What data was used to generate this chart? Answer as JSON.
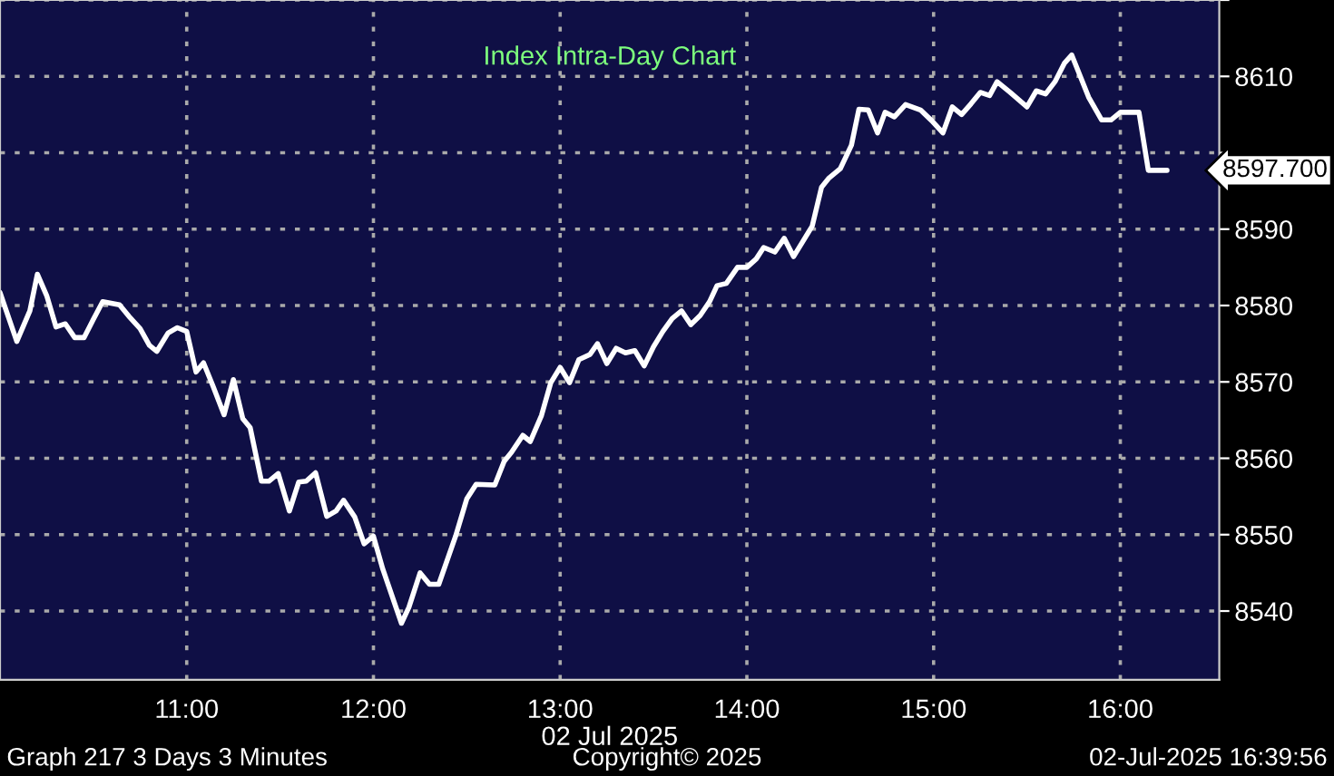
{
  "chart_data": {
    "type": "line",
    "title": "Index Intra-Day Chart",
    "xlabel": "02 Jul 2025",
    "x": [
      10.0,
      10.09,
      10.16,
      10.2,
      10.25,
      10.3,
      10.35,
      10.4,
      10.45,
      10.5,
      10.55,
      10.64,
      10.69,
      10.75,
      10.8,
      10.84,
      10.9,
      10.95,
      11.0,
      11.05,
      11.09,
      11.14,
      11.2,
      11.25,
      11.3,
      11.34,
      11.4,
      11.44,
      11.49,
      11.55,
      11.6,
      11.64,
      11.69,
      11.75,
      11.8,
      11.84,
      11.9,
      11.95,
      12.0,
      12.05,
      12.15,
      12.19,
      12.25,
      12.3,
      12.35,
      12.44,
      12.5,
      12.55,
      12.65,
      12.7,
      12.74,
      12.8,
      12.84,
      12.9,
      12.95,
      13.0,
      13.05,
      13.1,
      13.16,
      13.2,
      13.25,
      13.3,
      13.35,
      13.4,
      13.45,
      13.5,
      13.55,
      13.6,
      13.65,
      13.7,
      13.75,
      13.8,
      13.84,
      13.89,
      13.95,
      14.0,
      14.05,
      14.09,
      14.15,
      14.2,
      14.25,
      14.35,
      14.4,
      14.44,
      14.5,
      14.56,
      14.6,
      14.65,
      14.7,
      14.74,
      14.79,
      14.85,
      14.93,
      14.99,
      15.05,
      15.1,
      15.15,
      15.2,
      15.25,
      15.3,
      15.34,
      15.41,
      15.5,
      15.55,
      15.6,
      15.65,
      15.7,
      15.74,
      15.83,
      15.9,
      15.95,
      16.0,
      16.1,
      16.15,
      16.25
    ],
    "series": [
      {
        "color": "#ffffff",
        "values": [
          8581.7,
          8575.3,
          8579.3,
          8584.1,
          8581.3,
          8577.2,
          8577.6,
          8575.8,
          8575.8,
          8578.2,
          8580.5,
          8580.1,
          8578.6,
          8577.0,
          8574.8,
          8574.0,
          8576.4,
          8577.1,
          8576.6,
          8571.3,
          8572.5,
          8569.5,
          8565.7,
          8570.3,
          8565.2,
          8564.0,
          8557.0,
          8557.0,
          8558.0,
          8553.1,
          8556.9,
          8557.0,
          8558.1,
          8552.4,
          8553.1,
          8554.5,
          8552.3,
          8548.8,
          8549.8,
          8545.5,
          8538.4,
          8540.5,
          8545.0,
          8543.5,
          8543.5,
          8549.8,
          8554.7,
          8556.6,
          8556.5,
          8559.6,
          8560.8,
          8563.0,
          8562.2,
          8565.6,
          8569.9,
          8571.9,
          8569.9,
          8572.9,
          8573.6,
          8575.0,
          8572.4,
          8574.4,
          8573.8,
          8574.1,
          8572.1,
          8574.6,
          8576.6,
          8578.3,
          8579.3,
          8577.5,
          8578.7,
          8580.5,
          8582.6,
          8582.9,
          8585.0,
          8585.0,
          8586.1,
          8587.6,
          8587.0,
          8588.8,
          8586.4,
          8590.4,
          8595.5,
          8596.7,
          8597.9,
          8601.0,
          8605.7,
          8605.6,
          8602.6,
          8605.3,
          8604.7,
          8606.3,
          8605.6,
          8604.2,
          8602.6,
          8606.0,
          8605.0,
          8606.4,
          8607.9,
          8607.5,
          8609.3,
          8607.9,
          8606.0,
          8608.1,
          8607.7,
          8609.3,
          8611.7,
          8612.8,
          8607.3,
          8604.3,
          8604.3,
          8605.3,
          8605.3,
          8597.7,
          8597.7
        ]
      }
    ],
    "xlim": [
      10.0,
      16.53
    ],
    "xticks": [
      {
        "value": 11,
        "label": "11:00"
      },
      {
        "value": 12,
        "label": "12:00"
      },
      {
        "value": 13,
        "label": "13:00"
      },
      {
        "value": 14,
        "label": "14:00"
      },
      {
        "value": 15,
        "label": "15:00"
      },
      {
        "value": 16,
        "label": "16:00"
      }
    ],
    "ylim": [
      8531,
      8620
    ],
    "yticks": [
      8540,
      8550,
      8560,
      8570,
      8580,
      8590,
      {
        "value": 8600,
        "label": null
      },
      8610,
      {
        "value": 8620,
        "label": null
      }
    ],
    "grid": true,
    "marker": "none",
    "line_style": "solid",
    "annotations": [
      {
        "text": "8597.700",
        "x": 16.25,
        "y": 8597.7
      },
      "Graph 217 3 Days 3 Minutes",
      "Copyright© 2025",
      "02-Jul-2025 16:39:56"
    ]
  }
}
